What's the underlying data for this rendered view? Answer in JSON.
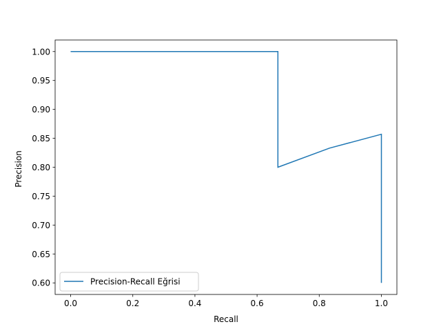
{
  "chart_data": {
    "type": "line",
    "title": "",
    "xlabel": "Recall",
    "ylabel": "Precision",
    "xlim": [
      -0.05,
      1.05
    ],
    "ylim": [
      0.58,
      1.02
    ],
    "xticks": [
      "0.0",
      "0.2",
      "0.4",
      "0.6",
      "0.8",
      "1.0"
    ],
    "xtick_values": [
      0.0,
      0.2,
      0.4,
      0.6,
      0.8,
      1.0
    ],
    "yticks": [
      "0.60",
      "0.65",
      "0.70",
      "0.75",
      "0.80",
      "0.85",
      "0.90",
      "0.95",
      "1.00"
    ],
    "ytick_values": [
      0.6,
      0.65,
      0.7,
      0.75,
      0.8,
      0.85,
      0.9,
      0.95,
      1.0
    ],
    "grid": false,
    "legend_position": "lower-left",
    "series": [
      {
        "name": "Precision-Recall Eğrisi",
        "color": "#1f77b4",
        "x": [
          0.0,
          0.667,
          0.667,
          0.833,
          1.0,
          1.0
        ],
        "y": [
          1.0,
          1.0,
          0.8,
          0.833,
          0.857,
          0.6
        ]
      }
    ]
  }
}
